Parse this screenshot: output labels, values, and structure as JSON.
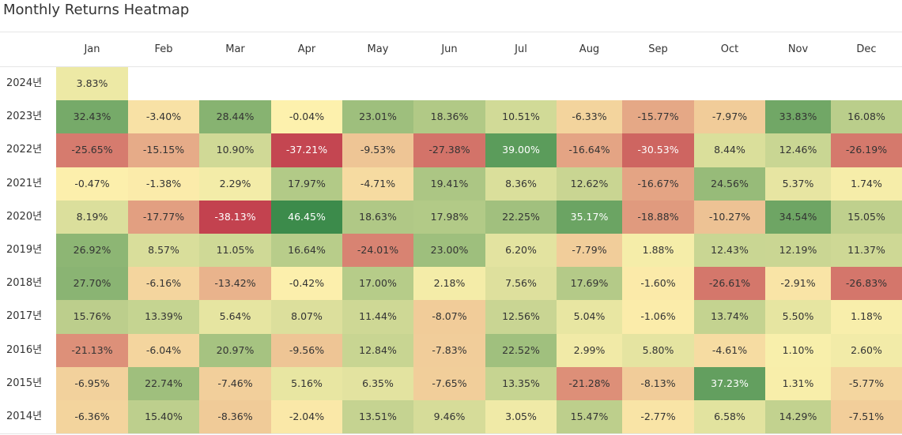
{
  "chart_data": {
    "type": "heatmap",
    "title": "Monthly Returns Heatmap",
    "columns": [
      "Jan",
      "Feb",
      "Mar",
      "Apr",
      "May",
      "Jun",
      "Jul",
      "Aug",
      "Sep",
      "Oct",
      "Nov",
      "Dec"
    ],
    "rows": [
      {
        "label": "2024년",
        "values": [
          "3.83%"
        ]
      },
      {
        "label": "2023년",
        "values": [
          "32.43%",
          "-3.40%",
          "28.44%",
          "-0.04%",
          "23.01%",
          "18.36%",
          "10.51%",
          "-6.33%",
          "-15.77%",
          "-7.97%",
          "33.83%",
          "16.08%"
        ]
      },
      {
        "label": "2022년",
        "values": [
          "-25.65%",
          "-15.15%",
          "10.90%",
          "-37.21%",
          "-9.53%",
          "-27.38%",
          "39.00%",
          "-16.64%",
          "-30.53%",
          "8.44%",
          "12.46%",
          "-26.19%"
        ]
      },
      {
        "label": "2021년",
        "values": [
          "-0.47%",
          "-1.38%",
          "2.29%",
          "17.97%",
          "-4.71%",
          "19.41%",
          "8.36%",
          "12.62%",
          "-16.67%",
          "24.56%",
          "5.37%",
          "1.74%"
        ]
      },
      {
        "label": "2020년",
        "values": [
          "8.19%",
          "-17.77%",
          "-38.13%",
          "46.45%",
          "18.63%",
          "17.98%",
          "22.25%",
          "35.17%",
          "-18.88%",
          "-10.27%",
          "34.54%",
          "15.05%"
        ]
      },
      {
        "label": "2019년",
        "values": [
          "26.92%",
          "8.57%",
          "11.05%",
          "16.64%",
          "-24.01%",
          "23.00%",
          "6.20%",
          "-7.79%",
          "1.88%",
          "12.43%",
          "12.19%",
          "11.37%"
        ]
      },
      {
        "label": "2018년",
        "values": [
          "27.70%",
          "-6.16%",
          "-13.42%",
          "-0.42%",
          "17.00%",
          "2.18%",
          "7.56%",
          "17.69%",
          "-1.60%",
          "-26.61%",
          "-2.91%",
          "-26.83%"
        ]
      },
      {
        "label": "2017년",
        "values": [
          "15.76%",
          "13.39%",
          "5.64%",
          "8.07%",
          "11.44%",
          "-8.07%",
          "12.56%",
          "5.04%",
          "-1.06%",
          "13.74%",
          "5.50%",
          "1.18%"
        ]
      },
      {
        "label": "2016년",
        "values": [
          "-21.13%",
          "-6.04%",
          "20.97%",
          "-9.56%",
          "12.84%",
          "-7.83%",
          "22.52%",
          "2.99%",
          "5.80%",
          "-4.61%",
          "1.10%",
          "2.60%"
        ]
      },
      {
        "label": "2015년",
        "values": [
          "-6.95%",
          "22.74%",
          "-7.46%",
          "5.16%",
          "6.35%",
          "-7.65%",
          "13.35%",
          "-21.28%",
          "-8.13%",
          "37.23%",
          "1.31%",
          "-5.77%"
        ]
      },
      {
        "label": "2014년",
        "values": [
          "-6.36%",
          "15.40%",
          "-8.36%",
          "-2.04%",
          "13.51%",
          "9.46%",
          "3.05%",
          "15.47%",
          "-2.77%",
          "6.58%",
          "14.29%",
          "-7.51%"
        ]
      }
    ],
    "color_scale": {
      "min": -40,
      "max": 47,
      "low": "#c0394a",
      "mid": "#fdf1ad",
      "high": "#3a8a4a"
    }
  }
}
